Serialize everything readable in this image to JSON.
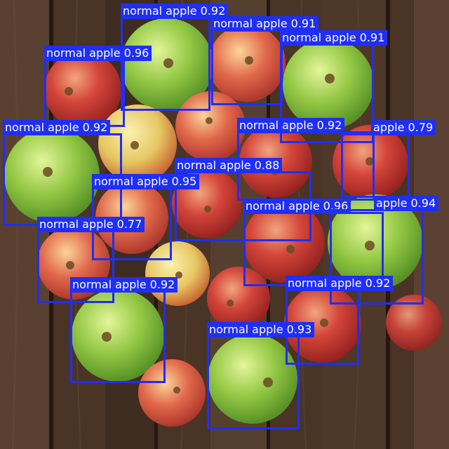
{
  "scene": {
    "background": "dark wooden planks",
    "subject": "pile of red and green apples",
    "apple_colors": {
      "red": "#c83a32",
      "green": "#8cc63f",
      "yellow_green": "#c9d96a"
    }
  },
  "overlay": {
    "box_color": "#1f2ff5",
    "text_color": "#ffffff",
    "detections": [
      {
        "label": "normal apple 0.92"
      },
      {
        "label": "normal apple 0.91"
      },
      {
        "label": "normal apple 0.91"
      },
      {
        "label": "normal apple 0.96"
      },
      {
        "label": "normal apple 0.92"
      },
      {
        "label": "normal apple 0.92"
      },
      {
        "label": "apple 0.79"
      },
      {
        "label": "normal apple 0.88"
      },
      {
        "label": "normal apple 0.95"
      },
      {
        "label": "normal apple 0.96"
      },
      {
        "label": "apple 0.94"
      },
      {
        "label": "normal apple 0.77"
      },
      {
        "label": "normal apple 0.92"
      },
      {
        "label": "normal apple 0.92"
      },
      {
        "label": "normal apple 0.93"
      }
    ]
  }
}
